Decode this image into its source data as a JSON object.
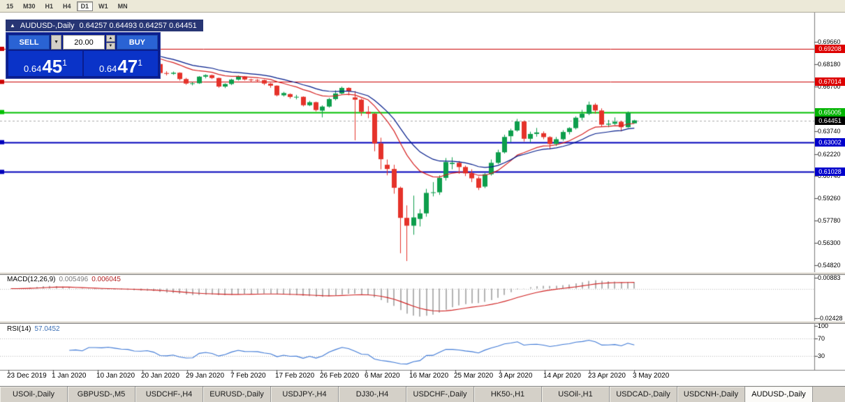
{
  "toolbar": {
    "timeframes": [
      "15",
      "M30",
      "H1",
      "H4",
      "D1",
      "W1",
      "MN"
    ],
    "active_timeframe": "D1"
  },
  "chart": {
    "header": {
      "collapse_icon": "▲",
      "title": "AUDUSD-,Daily",
      "ohlc": "0.64257 0.64493 0.64257 0.64451"
    },
    "trade_panel": {
      "sell_label": "SELL",
      "buy_label": "BUY",
      "volume": "20.00",
      "dropdown_icon": "▼",
      "spinner_up_icon": "▲",
      "spinner_down_icon": "▼",
      "bid": {
        "prefix": "0.64",
        "big": "45",
        "sup": "1"
      },
      "ask": {
        "prefix": "0.64",
        "big": "47",
        "sup": "1"
      }
    }
  },
  "price_axis": {
    "labels": [
      {
        "text": "0.69660",
        "price": 0.6966
      },
      {
        "text": "0.68180",
        "price": 0.6818
      },
      {
        "text": "0.66700",
        "price": 0.667
      },
      {
        "text": "0.63740",
        "price": 0.6374
      },
      {
        "text": "0.62220",
        "price": 0.6222
      },
      {
        "text": "0.60740",
        "price": 0.6074
      },
      {
        "text": "0.59260",
        "price": 0.5926
      },
      {
        "text": "0.57780",
        "price": 0.5778
      },
      {
        "text": "0.56300",
        "price": 0.563
      },
      {
        "text": "0.54820",
        "price": 0.5482
      }
    ],
    "badges": [
      {
        "text": "0.69208",
        "price": 0.69208,
        "bg": "#dd0000"
      },
      {
        "text": "0.67014",
        "price": 0.67014,
        "bg": "#dd0000"
      },
      {
        "text": "0.65005",
        "price": 0.65005,
        "bg": "#00b400"
      },
      {
        "text": "0.64451",
        "price": 0.64451,
        "bg": "#000000"
      },
      {
        "text": "0.63002",
        "price": 0.63002,
        "bg": "#0000cc"
      },
      {
        "text": "0.61028",
        "price": 0.61028,
        "bg": "#0000cc"
      }
    ]
  },
  "macd_panel": {
    "label": "MACD(12,26,9)",
    "value1": "0.005496",
    "value2": "0.006045",
    "axis": [
      {
        "text": "0.00883",
        "value": 0.00883
      },
      {
        "text": "-0.02428",
        "value": -0.02428
      }
    ]
  },
  "rsi_panel": {
    "label": "RSI(14)",
    "value": "57.0452",
    "axis": [
      {
        "text": "100",
        "value": 100
      },
      {
        "text": "70",
        "value": 70
      },
      {
        "text": "30",
        "value": 30
      }
    ],
    "levels": [
      70,
      30
    ]
  },
  "date_axis": [
    "23 Dec 2019",
    "1 Jan 2020",
    "10 Jan 2020",
    "20 Jan 2020",
    "29 Jan 2020",
    "7 Feb 2020",
    "17 Feb 2020",
    "26 Feb 2020",
    "6 Mar 2020",
    "16 Mar 2020",
    "25 Mar 2020",
    "3 Apr 2020",
    "14 Apr 2020",
    "23 Apr 2020",
    "3 May 2020"
  ],
  "tabs": [
    {
      "label": "USOil-,Daily",
      "active": false
    },
    {
      "label": "GBPUSD-,M5",
      "active": false
    },
    {
      "label": "USDCHF-,H4",
      "active": false
    },
    {
      "label": "EURUSD-,Daily",
      "active": false
    },
    {
      "label": "USDJPY-,H4",
      "active": false
    },
    {
      "label": "DJ30-,H4",
      "active": false
    },
    {
      "label": "USDCHF-,Daily",
      "active": false
    },
    {
      "label": "HK50-,H1",
      "active": false
    },
    {
      "label": "USOil-,H1",
      "active": false
    },
    {
      "label": "USDCAD-,Daily",
      "active": false
    },
    {
      "label": "USDCNH-,Daily",
      "active": false
    },
    {
      "label": "AUDUSD-,Daily",
      "active": true
    }
  ],
  "chart_data": {
    "type": "candlestick",
    "symbol": "AUDUSD-",
    "timeframe": "Daily",
    "current_ohlc": {
      "open": 0.64257,
      "high": 0.64493,
      "low": 0.64257,
      "close": 0.64451
    },
    "bid": 0.64451,
    "ask": 0.64471,
    "horizontal_levels": [
      {
        "price": 0.69208,
        "color": "#cc0000",
        "width": 1
      },
      {
        "price": 0.67014,
        "color": "#cc0000",
        "width": 1
      },
      {
        "price": 0.65005,
        "color": "#00c000",
        "width": 2
      },
      {
        "price": 0.63002,
        "color": "#0000bb",
        "width": 2
      },
      {
        "price": 0.61028,
        "color": "#0000bb",
        "width": 2
      }
    ],
    "current_price_line": 0.64451,
    "indicators": {
      "ma_fast": {
        "type": "ema",
        "period": 13,
        "color": "#d62020"
      },
      "ma_slow": {
        "type": "ema",
        "period": 20,
        "color": "#001a8a"
      },
      "macd": {
        "fast": 12,
        "slow": 26,
        "signal": 9,
        "current_macd": 0.005496,
        "current_signal": 0.006045
      },
      "rsi": {
        "period": 14,
        "current": 57.0452,
        "levels": [
          70,
          30
        ]
      }
    },
    "colors": {
      "up": "#0d9e4c",
      "down": "#e5322a",
      "macd_hist": "#b2b2b2",
      "macd_signal": "#d02020",
      "rsi_line": "#3d78d6"
    },
    "ohlc": [
      [
        0.6895,
        0.6912,
        0.6888,
        0.6905
      ],
      [
        0.6905,
        0.6925,
        0.69,
        0.692
      ],
      [
        0.692,
        0.693,
        0.6912,
        0.6925
      ],
      [
        0.6925,
        0.699,
        0.692,
        0.6985
      ],
      [
        0.6985,
        0.7005,
        0.6978,
        0.6995
      ],
      [
        0.6995,
        0.7032,
        0.699,
        0.7021
      ],
      [
        0.7015,
        0.702,
        0.698,
        0.6989
      ],
      [
        0.6989,
        0.6995,
        0.6936,
        0.695
      ],
      [
        0.6945,
        0.6955,
        0.6925,
        0.6935
      ],
      [
        0.6935,
        0.694,
        0.685,
        0.6865
      ],
      [
        0.6865,
        0.6882,
        0.6855,
        0.687
      ],
      [
        0.687,
        0.6878,
        0.6849,
        0.6855
      ],
      [
        0.6855,
        0.6905,
        0.685,
        0.69
      ],
      [
        0.6898,
        0.691,
        0.6892,
        0.69
      ],
      [
        0.69,
        0.6908,
        0.6885,
        0.6895
      ],
      [
        0.6895,
        0.6912,
        0.689,
        0.6905
      ],
      [
        0.6905,
        0.691,
        0.6882,
        0.689
      ],
      [
        0.689,
        0.6895,
        0.6865,
        0.6875
      ],
      [
        0.6872,
        0.6884,
        0.6862,
        0.6871
      ],
      [
        0.6871,
        0.6875,
        0.6838,
        0.6845
      ],
      [
        0.6845,
        0.6855,
        0.683,
        0.6843
      ],
      [
        0.6843,
        0.6855,
        0.6835,
        0.6848
      ],
      [
        0.6848,
        0.6852,
        0.6818,
        0.6826
      ],
      [
        0.682,
        0.6824,
        0.6752,
        0.676
      ],
      [
        0.676,
        0.6772,
        0.6744,
        0.6755
      ],
      [
        0.6755,
        0.677,
        0.6748,
        0.6762
      ],
      [
        0.6762,
        0.6765,
        0.671,
        0.672
      ],
      [
        0.672,
        0.6728,
        0.6682,
        0.669
      ],
      [
        0.6688,
        0.67,
        0.6678,
        0.6692
      ],
      [
        0.6692,
        0.674,
        0.6688,
        0.6736
      ],
      [
        0.6736,
        0.6752,
        0.6725,
        0.6746
      ],
      [
        0.6746,
        0.675,
        0.672,
        0.6727
      ],
      [
        0.6727,
        0.673,
        0.6662,
        0.667
      ],
      [
        0.667,
        0.6692,
        0.666,
        0.6687
      ],
      [
        0.6687,
        0.6722,
        0.668,
        0.6716
      ],
      [
        0.6716,
        0.6743,
        0.671,
        0.6737
      ],
      [
        0.6737,
        0.674,
        0.671,
        0.6717
      ],
      [
        0.6717,
        0.6722,
        0.67,
        0.6714
      ],
      [
        0.6714,
        0.672,
        0.67,
        0.6713
      ],
      [
        0.6713,
        0.6717,
        0.668,
        0.669
      ],
      [
        0.669,
        0.6695,
        0.6662,
        0.6676
      ],
      [
        0.6676,
        0.6678,
        0.6605,
        0.6612
      ],
      [
        0.6612,
        0.6635,
        0.6604,
        0.6627
      ],
      [
        0.662,
        0.6625,
        0.659,
        0.6601
      ],
      [
        0.6601,
        0.6615,
        0.6585,
        0.6602
      ],
      [
        0.6602,
        0.6605,
        0.6538,
        0.6546
      ],
      [
        0.6546,
        0.6575,
        0.654,
        0.6566
      ],
      [
        0.6566,
        0.657,
        0.6505,
        0.6514
      ],
      [
        0.651,
        0.6545,
        0.6465,
        0.6537
      ],
      [
        0.6537,
        0.6595,
        0.653,
        0.6587
      ],
      [
        0.6587,
        0.6645,
        0.6578,
        0.6624
      ],
      [
        0.6624,
        0.667,
        0.6618,
        0.6661
      ],
      [
        0.6661,
        0.6665,
        0.6612,
        0.6639
      ],
      [
        0.6598,
        0.664,
        0.6313,
        0.6583
      ],
      [
        0.6583,
        0.659,
        0.6475,
        0.6502
      ],
      [
        0.6502,
        0.654,
        0.646,
        0.6489
      ],
      [
        0.6489,
        0.6495,
        0.624,
        0.6292
      ],
      [
        0.6292,
        0.633,
        0.612,
        0.6187
      ],
      [
        0.615,
        0.6185,
        0.608,
        0.6122
      ],
      [
        0.6122,
        0.615,
        0.5958,
        0.5997
      ],
      [
        0.5997,
        0.6005,
        0.5562,
        0.5797
      ],
      [
        0.5797,
        0.588,
        0.551,
        0.5745
      ],
      [
        0.5745,
        0.5945,
        0.5685,
        0.58
      ],
      [
        0.579,
        0.5855,
        0.574,
        0.5827
      ],
      [
        0.5827,
        0.599,
        0.5805,
        0.5963
      ],
      [
        0.5963,
        0.6035,
        0.594,
        0.5967
      ],
      [
        0.5967,
        0.608,
        0.595,
        0.6063
      ],
      [
        0.6063,
        0.6195,
        0.6045,
        0.6168
      ],
      [
        0.6155,
        0.62,
        0.612,
        0.6163
      ],
      [
        0.6163,
        0.6175,
        0.609,
        0.6135
      ],
      [
        0.6135,
        0.6145,
        0.6075,
        0.6093
      ],
      [
        0.6093,
        0.612,
        0.6035,
        0.606
      ],
      [
        0.606,
        0.6072,
        0.5982,
        0.5997
      ],
      [
        0.6005,
        0.6095,
        0.5995,
        0.6087
      ],
      [
        0.6087,
        0.6185,
        0.6078,
        0.6163
      ],
      [
        0.6163,
        0.625,
        0.6155,
        0.6233
      ],
      [
        0.6233,
        0.635,
        0.6225,
        0.6335
      ],
      [
        0.634,
        0.639,
        0.63,
        0.6378
      ],
      [
        0.6378,
        0.6455,
        0.637,
        0.6438
      ],
      [
        0.6438,
        0.6445,
        0.6305,
        0.6323
      ],
      [
        0.6323,
        0.637,
        0.63,
        0.6355
      ],
      [
        0.6355,
        0.6395,
        0.6337,
        0.6365
      ],
      [
        0.636,
        0.6372,
        0.632,
        0.6334
      ],
      [
        0.6334,
        0.634,
        0.6253,
        0.6288
      ],
      [
        0.6288,
        0.6335,
        0.6275,
        0.632
      ],
      [
        0.632,
        0.638,
        0.631,
        0.6368
      ],
      [
        0.6368,
        0.64,
        0.6352,
        0.6394
      ],
      [
        0.6394,
        0.6472,
        0.6385,
        0.6463
      ],
      [
        0.6463,
        0.6515,
        0.6445,
        0.6489
      ],
      [
        0.6489,
        0.657,
        0.648,
        0.6549
      ],
      [
        0.6549,
        0.656,
        0.649,
        0.6511
      ],
      [
        0.6511,
        0.6525,
        0.6402,
        0.6417
      ],
      [
        0.6417,
        0.6448,
        0.64,
        0.6423
      ],
      [
        0.6423,
        0.6465,
        0.6415,
        0.6436
      ],
      [
        0.6436,
        0.6442,
        0.6372,
        0.64
      ],
      [
        0.64,
        0.6505,
        0.6395,
        0.6495
      ],
      [
        0.64257,
        0.64493,
        0.64257,
        0.64451
      ]
    ]
  }
}
